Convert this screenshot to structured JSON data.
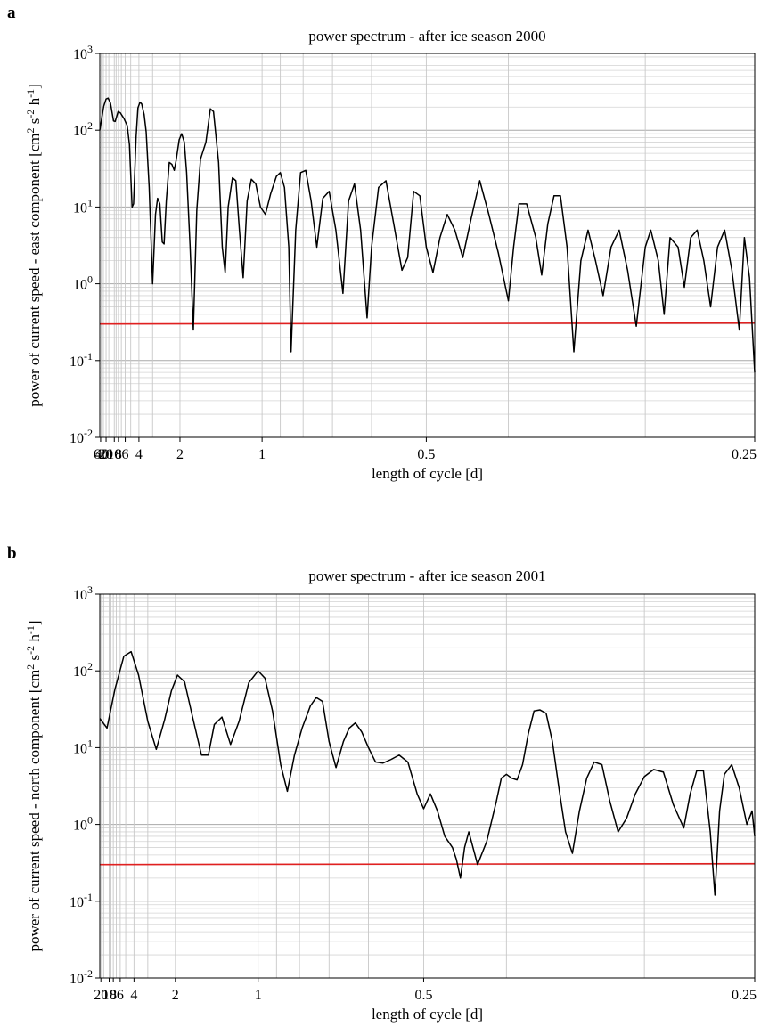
{
  "chart_data": [
    {
      "type": "line",
      "panel_label": "a",
      "title": "power spectrum - after ice season 2000",
      "xlabel": "length of cycle [d]",
      "ylabel_main": "power of current speed - east component [cm",
      "ylabel_sup1": "2",
      "ylabel_mid": " s",
      "ylabel_sup2": "-2",
      "ylabel_mid2": " h",
      "ylabel_sup3": "-1",
      "ylabel_end": "]",
      "x_scale": "reciprocal",
      "xlim": [
        85,
        0.25
      ],
      "y_scale": "log",
      "ylim": [
        0.01,
        1000
      ],
      "y_ticks": [
        {
          "base": "10",
          "exp": "-2",
          "value": 0.01
        },
        {
          "base": "10",
          "exp": "-1",
          "value": 0.1
        },
        {
          "base": "10",
          "exp": "0",
          "value": 1
        },
        {
          "base": "10",
          "exp": "1",
          "value": 10
        },
        {
          "base": "10",
          "exp": "2",
          "value": 100
        },
        {
          "base": "10",
          "exp": "3",
          "value": 1000
        }
      ],
      "x_ticks": [
        {
          "label": "60",
          "value": 60
        },
        {
          "label": "40",
          "value": 40
        },
        {
          "label": "20",
          "value": 20
        },
        {
          "label": "10",
          "value": 10
        },
        {
          "label": "8",
          "value": 8
        },
        {
          "label": "6",
          "value": 6
        },
        {
          "label": "4",
          "value": 4
        },
        {
          "label": "2",
          "value": 2
        },
        {
          "label": "1",
          "value": 1
        },
        {
          "label": "0.5",
          "value": 0.5
        },
        {
          "label": "0.25",
          "value": 0.25
        }
      ],
      "grid": true,
      "threshold": 0.3,
      "threshold_color": "#e02020",
      "series_color": "#000000",
      "series": [
        {
          "points": [
            [
              85,
              100
            ],
            [
              40,
              150
            ],
            [
              28,
              205
            ],
            [
              20,
              255
            ],
            [
              16,
              262
            ],
            [
              13,
              225
            ],
            [
              10.5,
              132
            ],
            [
              9.5,
              130
            ],
            [
              8.1,
              175
            ],
            [
              7.3,
              168
            ],
            [
              6.3,
              142
            ],
            [
              5.6,
              115
            ],
            [
              5.2,
              65
            ],
            [
              4.8,
              10
            ],
            [
              4.6,
              11
            ],
            [
              4.3,
              80
            ],
            [
              4.1,
              195
            ],
            [
              3.9,
              232
            ],
            [
              3.75,
              220
            ],
            [
              3.55,
              160
            ],
            [
              3.4,
              95
            ],
            [
              3.2,
              18
            ],
            [
              3.0,
              1.0
            ],
            [
              2.85,
              8
            ],
            [
              2.75,
              13
            ],
            [
              2.65,
              11
            ],
            [
              2.55,
              3.5
            ],
            [
              2.48,
              3.3
            ],
            [
              2.4,
              12
            ],
            [
              2.3,
              38
            ],
            [
              2.22,
              36
            ],
            [
              2.15,
              30
            ],
            [
              2.1,
              40
            ],
            [
              2.02,
              75
            ],
            [
              1.96,
              90
            ],
            [
              1.9,
              70
            ],
            [
              1.85,
              28
            ],
            [
              1.78,
              3.0
            ],
            [
              1.72,
              0.25
            ],
            [
              1.66,
              9
            ],
            [
              1.6,
              42
            ],
            [
              1.52,
              70
            ],
            [
              1.46,
              190
            ],
            [
              1.42,
              175
            ],
            [
              1.36,
              38
            ],
            [
              1.32,
              3.0
            ],
            [
              1.29,
              1.4
            ],
            [
              1.26,
              10
            ],
            [
              1.22,
              24
            ],
            [
              1.19,
              22
            ],
            [
              1.16,
              5
            ],
            [
              1.13,
              1.2
            ],
            [
              1.1,
              12
            ],
            [
              1.07,
              23
            ],
            [
              1.04,
              20
            ],
            [
              1.01,
              10
            ],
            [
              0.98,
              8
            ],
            [
              0.95,
              15
            ],
            [
              0.92,
              25
            ],
            [
              0.9,
              28
            ],
            [
              0.88,
              18
            ],
            [
              0.86,
              3
            ],
            [
              0.85,
              0.13
            ],
            [
              0.83,
              5
            ],
            [
              0.81,
              28
            ],
            [
              0.79,
              30
            ],
            [
              0.77,
              12
            ],
            [
              0.75,
              3
            ],
            [
              0.73,
              13
            ],
            [
              0.71,
              16
            ],
            [
              0.69,
              5
            ],
            [
              0.67,
              0.75
            ],
            [
              0.655,
              12
            ],
            [
              0.64,
              20
            ],
            [
              0.625,
              5
            ],
            [
              0.61,
              0.36
            ],
            [
              0.6,
              3
            ],
            [
              0.585,
              18
            ],
            [
              0.57,
              22
            ],
            [
              0.555,
              6
            ],
            [
              0.54,
              1.5
            ],
            [
              0.53,
              2.2
            ],
            [
              0.52,
              16
            ],
            [
              0.51,
              14
            ],
            [
              0.5,
              3
            ],
            [
              0.49,
              1.4
            ],
            [
              0.48,
              4
            ],
            [
              0.47,
              8
            ],
            [
              0.46,
              5
            ],
            [
              0.45,
              2.2
            ],
            [
              0.44,
              7
            ],
            [
              0.43,
              22
            ],
            [
              0.42,
              8
            ],
            [
              0.41,
              2.5
            ],
            [
              0.4,
              0.6
            ],
            [
              0.395,
              3
            ],
            [
              0.39,
              11
            ],
            [
              0.383,
              11
            ],
            [
              0.375,
              4
            ],
            [
              0.37,
              1.3
            ],
            [
              0.365,
              6
            ],
            [
              0.36,
              14
            ],
            [
              0.355,
              14
            ],
            [
              0.35,
              3
            ],
            [
              0.345,
              0.13
            ],
            [
              0.34,
              2
            ],
            [
              0.335,
              5
            ],
            [
              0.33,
              2
            ],
            [
              0.325,
              0.7
            ],
            [
              0.32,
              3
            ],
            [
              0.315,
              5
            ],
            [
              0.31,
              1.5
            ],
            [
              0.305,
              0.28
            ],
            [
              0.3,
              3
            ],
            [
              0.297,
              5
            ],
            [
              0.293,
              2
            ],
            [
              0.29,
              0.4
            ],
            [
              0.287,
              4
            ],
            [
              0.283,
              3
            ],
            [
              0.28,
              0.9
            ],
            [
              0.277,
              4
            ],
            [
              0.274,
              5
            ],
            [
              0.271,
              2
            ],
            [
              0.268,
              0.5
            ],
            [
              0.265,
              3
            ],
            [
              0.262,
              5
            ],
            [
              0.259,
              1.5
            ],
            [
              0.256,
              0.25
            ],
            [
              0.254,
              4
            ],
            [
              0.252,
              1.2
            ],
            [
              0.25,
              0.07
            ]
          ]
        }
      ]
    },
    {
      "type": "line",
      "panel_label": "b",
      "title": "power spectrum - after ice season 2001",
      "xlabel": "length of cycle [d]",
      "ylabel_main": "power of current speed - north component [cm",
      "ylabel_sup1": "2",
      "ylabel_mid": " s",
      "ylabel_sup2": "-2",
      "ylabel_mid2": " h",
      "ylabel_sup3": "-1",
      "ylabel_end": "]",
      "x_scale": "reciprocal",
      "xlim": [
        23,
        0.25
      ],
      "y_scale": "log",
      "ylim": [
        0.01,
        1000
      ],
      "y_ticks": [
        {
          "base": "10",
          "exp": "-2",
          "value": 0.01
        },
        {
          "base": "10",
          "exp": "-1",
          "value": 0.1
        },
        {
          "base": "10",
          "exp": "0",
          "value": 1
        },
        {
          "base": "10",
          "exp": "1",
          "value": 10
        },
        {
          "base": "10",
          "exp": "2",
          "value": 100
        },
        {
          "base": "10",
          "exp": "3",
          "value": 1000
        }
      ],
      "x_ticks": [
        {
          "label": "20",
          "value": 20
        },
        {
          "label": "10",
          "value": 10
        },
        {
          "label": "8",
          "value": 8
        },
        {
          "label": "6",
          "value": 6
        },
        {
          "label": "4",
          "value": 4
        },
        {
          "label": "2",
          "value": 2
        },
        {
          "label": "1",
          "value": 1
        },
        {
          "label": "0.5",
          "value": 0.5
        },
        {
          "label": "0.25",
          "value": 0.25
        }
      ],
      "grid": true,
      "threshold": 0.3,
      "threshold_color": "#e02020",
      "series_color": "#000000",
      "series": [
        {
          "points": [
            [
              23,
              24
            ],
            [
              11.5,
              18
            ],
            [
              7.4,
              58
            ],
            [
              5.3,
              155
            ],
            [
              4.3,
              178
            ],
            [
              3.6,
              88
            ],
            [
              3.0,
              22
            ],
            [
              2.6,
              9.5
            ],
            [
              2.3,
              23
            ],
            [
              2.1,
              55
            ],
            [
              1.95,
              88
            ],
            [
              1.8,
              72
            ],
            [
              1.65,
              24
            ],
            [
              1.52,
              8
            ],
            [
              1.43,
              8
            ],
            [
              1.36,
              20
            ],
            [
              1.28,
              25
            ],
            [
              1.2,
              11
            ],
            [
              1.13,
              22
            ],
            [
              1.06,
              70
            ],
            [
              1.0,
              100
            ],
            [
              0.96,
              80
            ],
            [
              0.92,
              30
            ],
            [
              0.88,
              6
            ],
            [
              0.85,
              2.7
            ],
            [
              0.82,
              8
            ],
            [
              0.79,
              18
            ],
            [
              0.76,
              35
            ],
            [
              0.74,
              45
            ],
            [
              0.72,
              40
            ],
            [
              0.7,
              12
            ],
            [
              0.68,
              5.5
            ],
            [
              0.66,
              12
            ],
            [
              0.645,
              18
            ],
            [
              0.63,
              21
            ],
            [
              0.615,
              16
            ],
            [
              0.6,
              10
            ],
            [
              0.585,
              6.5
            ],
            [
              0.57,
              6.3
            ],
            [
              0.555,
              7
            ],
            [
              0.54,
              8
            ],
            [
              0.525,
              6.5
            ],
            [
              0.51,
              2.5
            ],
            [
              0.5,
              1.6
            ],
            [
              0.49,
              2.5
            ],
            [
              0.48,
              1.5
            ],
            [
              0.47,
              0.7
            ],
            [
              0.46,
              0.5
            ],
            [
              0.455,
              0.35
            ],
            [
              0.45,
              0.2
            ],
            [
              0.445,
              0.5
            ],
            [
              0.44,
              0.8
            ],
            [
              0.43,
              0.3
            ],
            [
              0.42,
              0.6
            ],
            [
              0.41,
              2
            ],
            [
              0.405,
              4
            ],
            [
              0.4,
              4.5
            ],
            [
              0.395,
              4
            ],
            [
              0.39,
              3.8
            ],
            [
              0.385,
              6
            ],
            [
              0.38,
              15
            ],
            [
              0.375,
              30
            ],
            [
              0.37,
              31
            ],
            [
              0.365,
              28
            ],
            [
              0.36,
              12
            ],
            [
              0.355,
              3
            ],
            [
              0.35,
              0.8
            ],
            [
              0.345,
              0.42
            ],
            [
              0.34,
              1.5
            ],
            [
              0.335,
              4
            ],
            [
              0.33,
              6.5
            ],
            [
              0.325,
              6
            ],
            [
              0.32,
              2
            ],
            [
              0.315,
              0.8
            ],
            [
              0.31,
              1.2
            ],
            [
              0.305,
              2.5
            ],
            [
              0.3,
              4.2
            ],
            [
              0.295,
              5.2
            ],
            [
              0.29,
              4.8
            ],
            [
              0.285,
              1.8
            ],
            [
              0.28,
              0.9
            ],
            [
              0.277,
              2.5
            ],
            [
              0.274,
              5
            ],
            [
              0.271,
              5
            ],
            [
              0.268,
              0.8
            ],
            [
              0.266,
              0.12
            ],
            [
              0.264,
              1.5
            ],
            [
              0.262,
              4.5
            ],
            [
              0.259,
              6
            ],
            [
              0.256,
              3
            ],
            [
              0.253,
              1
            ],
            [
              0.251,
              1.5
            ],
            [
              0.25,
              0.7
            ]
          ]
        }
      ]
    }
  ]
}
